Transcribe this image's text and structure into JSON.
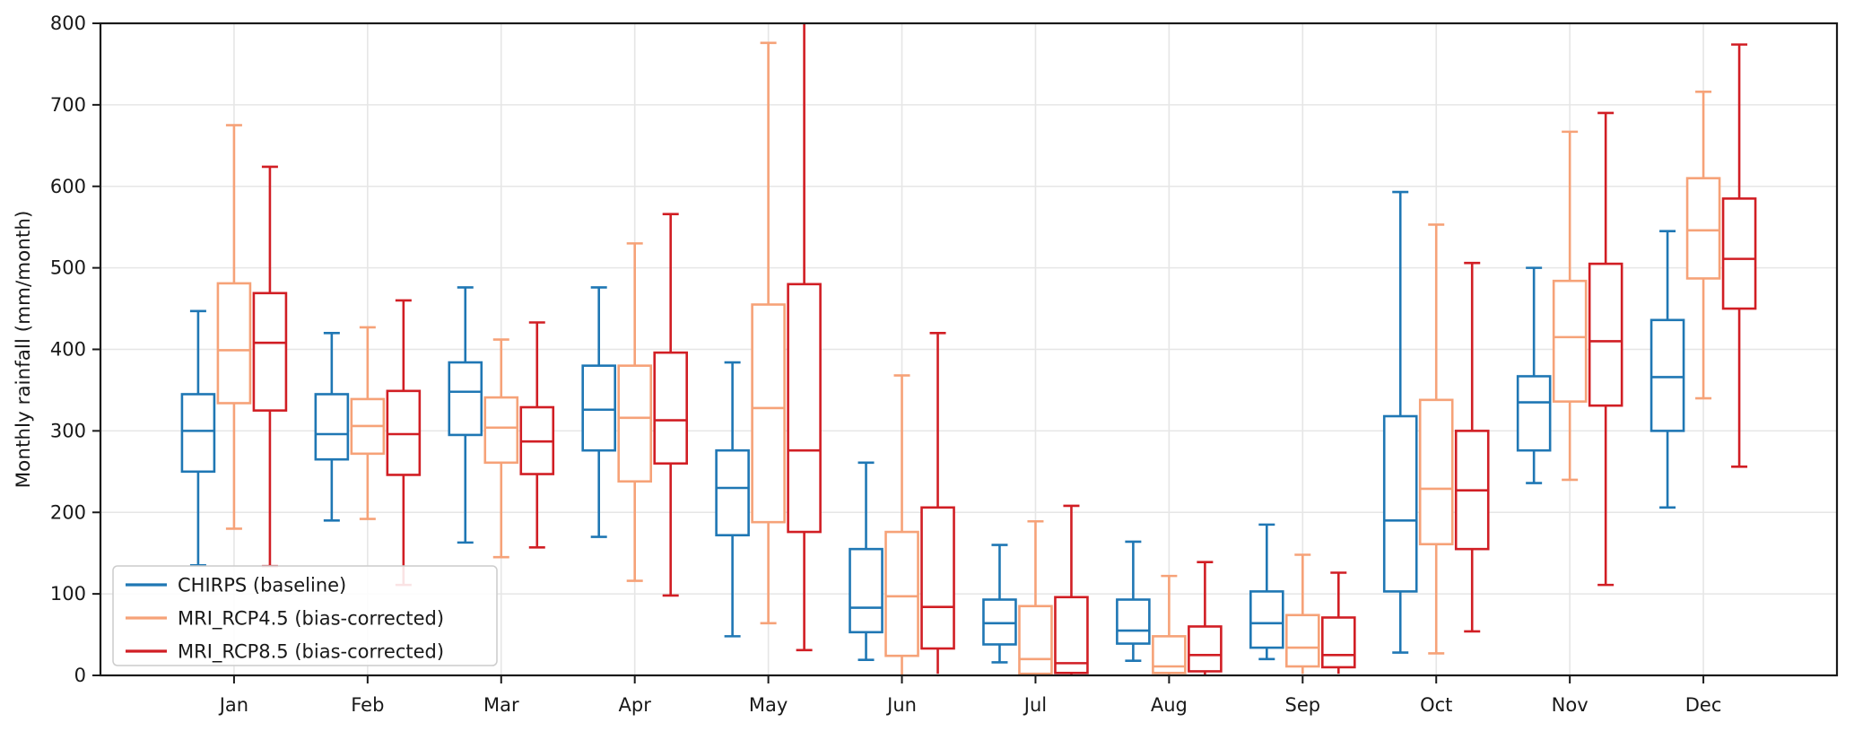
{
  "figure": {
    "background": "#ffffff",
    "grid_color": "#e6e6e6",
    "spine_color": "#1a1a1a",
    "tick_label_color": "#191919"
  },
  "chart_data": {
    "type": "boxplot",
    "title": "",
    "xlabel": "",
    "ylabel": "Monthly rainfall (mm/month)",
    "ylim": [
      0,
      800
    ],
    "yticks": [
      0,
      100,
      200,
      300,
      400,
      500,
      600,
      700,
      800
    ],
    "grid": true,
    "legend_position": "lower left",
    "categories": [
      "Jan",
      "Feb",
      "Mar",
      "Apr",
      "May",
      "Jun",
      "Jul",
      "Aug",
      "Sep",
      "Oct",
      "Nov",
      "Dec"
    ],
    "series": [
      {
        "name": "CHIRPS (baseline)",
        "color": "#1f77b4",
        "boxes": [
          {
            "min": 135,
            "q1": 250,
            "med": 300,
            "q3": 345,
            "max": 447
          },
          {
            "min": 190,
            "q1": 265,
            "med": 296,
            "q3": 345,
            "max": 420
          },
          {
            "min": 163,
            "q1": 295,
            "med": 348,
            "q3": 384,
            "max": 476
          },
          {
            "min": 170,
            "q1": 276,
            "med": 326,
            "q3": 380,
            "max": 476
          },
          {
            "min": 48,
            "q1": 172,
            "med": 230,
            "q3": 276,
            "max": 384
          },
          {
            "min": 19,
            "q1": 53,
            "med": 83,
            "q3": 155,
            "max": 261
          },
          {
            "min": 16,
            "q1": 38,
            "med": 64,
            "q3": 93,
            "max": 160
          },
          {
            "min": 18,
            "q1": 39,
            "med": 55,
            "q3": 93,
            "max": 164
          },
          {
            "min": 20,
            "q1": 34,
            "med": 64,
            "q3": 103,
            "max": 185
          },
          {
            "min": 28,
            "q1": 103,
            "med": 190,
            "q3": 318,
            "max": 593
          },
          {
            "min": 236,
            "q1": 276,
            "med": 335,
            "q3": 367,
            "max": 500
          },
          {
            "min": 206,
            "q1": 300,
            "med": 366,
            "q3": 436,
            "max": 545
          }
        ]
      },
      {
        "name": "MRI_RCP4.5 (bias-corrected)",
        "color": "#f6a278",
        "boxes": [
          {
            "min": 180,
            "q1": 334,
            "med": 399,
            "q3": 481,
            "max": 675
          },
          {
            "min": 192,
            "q1": 272,
            "med": 306,
            "q3": 339,
            "max": 427
          },
          {
            "min": 145,
            "q1": 261,
            "med": 304,
            "q3": 341,
            "max": 412
          },
          {
            "min": 116,
            "q1": 238,
            "med": 316,
            "q3": 380,
            "max": 530
          },
          {
            "min": 64,
            "q1": 188,
            "med": 328,
            "q3": 455,
            "max": 776
          },
          {
            "min": 0,
            "q1": 24,
            "med": 97,
            "q3": 176,
            "max": 368
          },
          {
            "min": 0,
            "q1": 2,
            "med": 20,
            "q3": 85,
            "max": 189
          },
          {
            "min": 0,
            "q1": 3,
            "med": 11,
            "q3": 48,
            "max": 122
          },
          {
            "min": 2,
            "q1": 11,
            "med": 34,
            "q3": 74,
            "max": 148
          },
          {
            "min": 27,
            "q1": 161,
            "med": 229,
            "q3": 338,
            "max": 553
          },
          {
            "min": 240,
            "q1": 336,
            "med": 415,
            "q3": 484,
            "max": 667
          },
          {
            "min": 340,
            "q1": 487,
            "med": 546,
            "q3": 610,
            "max": 716
          }
        ]
      },
      {
        "name": "MRI_RCP8.5 (bias-corrected)",
        "color": "#d11e24",
        "boxes": [
          {
            "min": 134,
            "q1": 325,
            "med": 408,
            "q3": 469,
            "max": 624
          },
          {
            "min": 111,
            "q1": 246,
            "med": 296,
            "q3": 349,
            "max": 460
          },
          {
            "min": 157,
            "q1": 247,
            "med": 287,
            "q3": 329,
            "max": 433
          },
          {
            "min": 98,
            "q1": 260,
            "med": 313,
            "q3": 396,
            "max": 566
          },
          {
            "min": 31,
            "q1": 176,
            "med": 276,
            "q3": 480,
            "max": 800
          },
          {
            "min": 2,
            "q1": 33,
            "med": 84,
            "q3": 206,
            "max": 420
          },
          {
            "min": 0,
            "q1": 3,
            "med": 15,
            "q3": 96,
            "max": 208
          },
          {
            "min": 0,
            "q1": 5,
            "med": 25,
            "q3": 60,
            "max": 139
          },
          {
            "min": 2,
            "q1": 10,
            "med": 25,
            "q3": 71,
            "max": 126
          },
          {
            "min": 54,
            "q1": 155,
            "med": 227,
            "q3": 300,
            "max": 506
          },
          {
            "min": 111,
            "q1": 331,
            "med": 410,
            "q3": 505,
            "max": 690
          },
          {
            "min": 256,
            "q1": 450,
            "med": 511,
            "q3": 585,
            "max": 774
          }
        ]
      }
    ]
  },
  "legend": {
    "items": [
      {
        "label": "CHIRPS (baseline)",
        "color": "#1f77b4"
      },
      {
        "label": "MRI_RCP4.5 (bias-corrected)",
        "color": "#f6a278"
      },
      {
        "label": "MRI_RCP8.5 (bias-corrected)",
        "color": "#d11e24"
      }
    ]
  }
}
